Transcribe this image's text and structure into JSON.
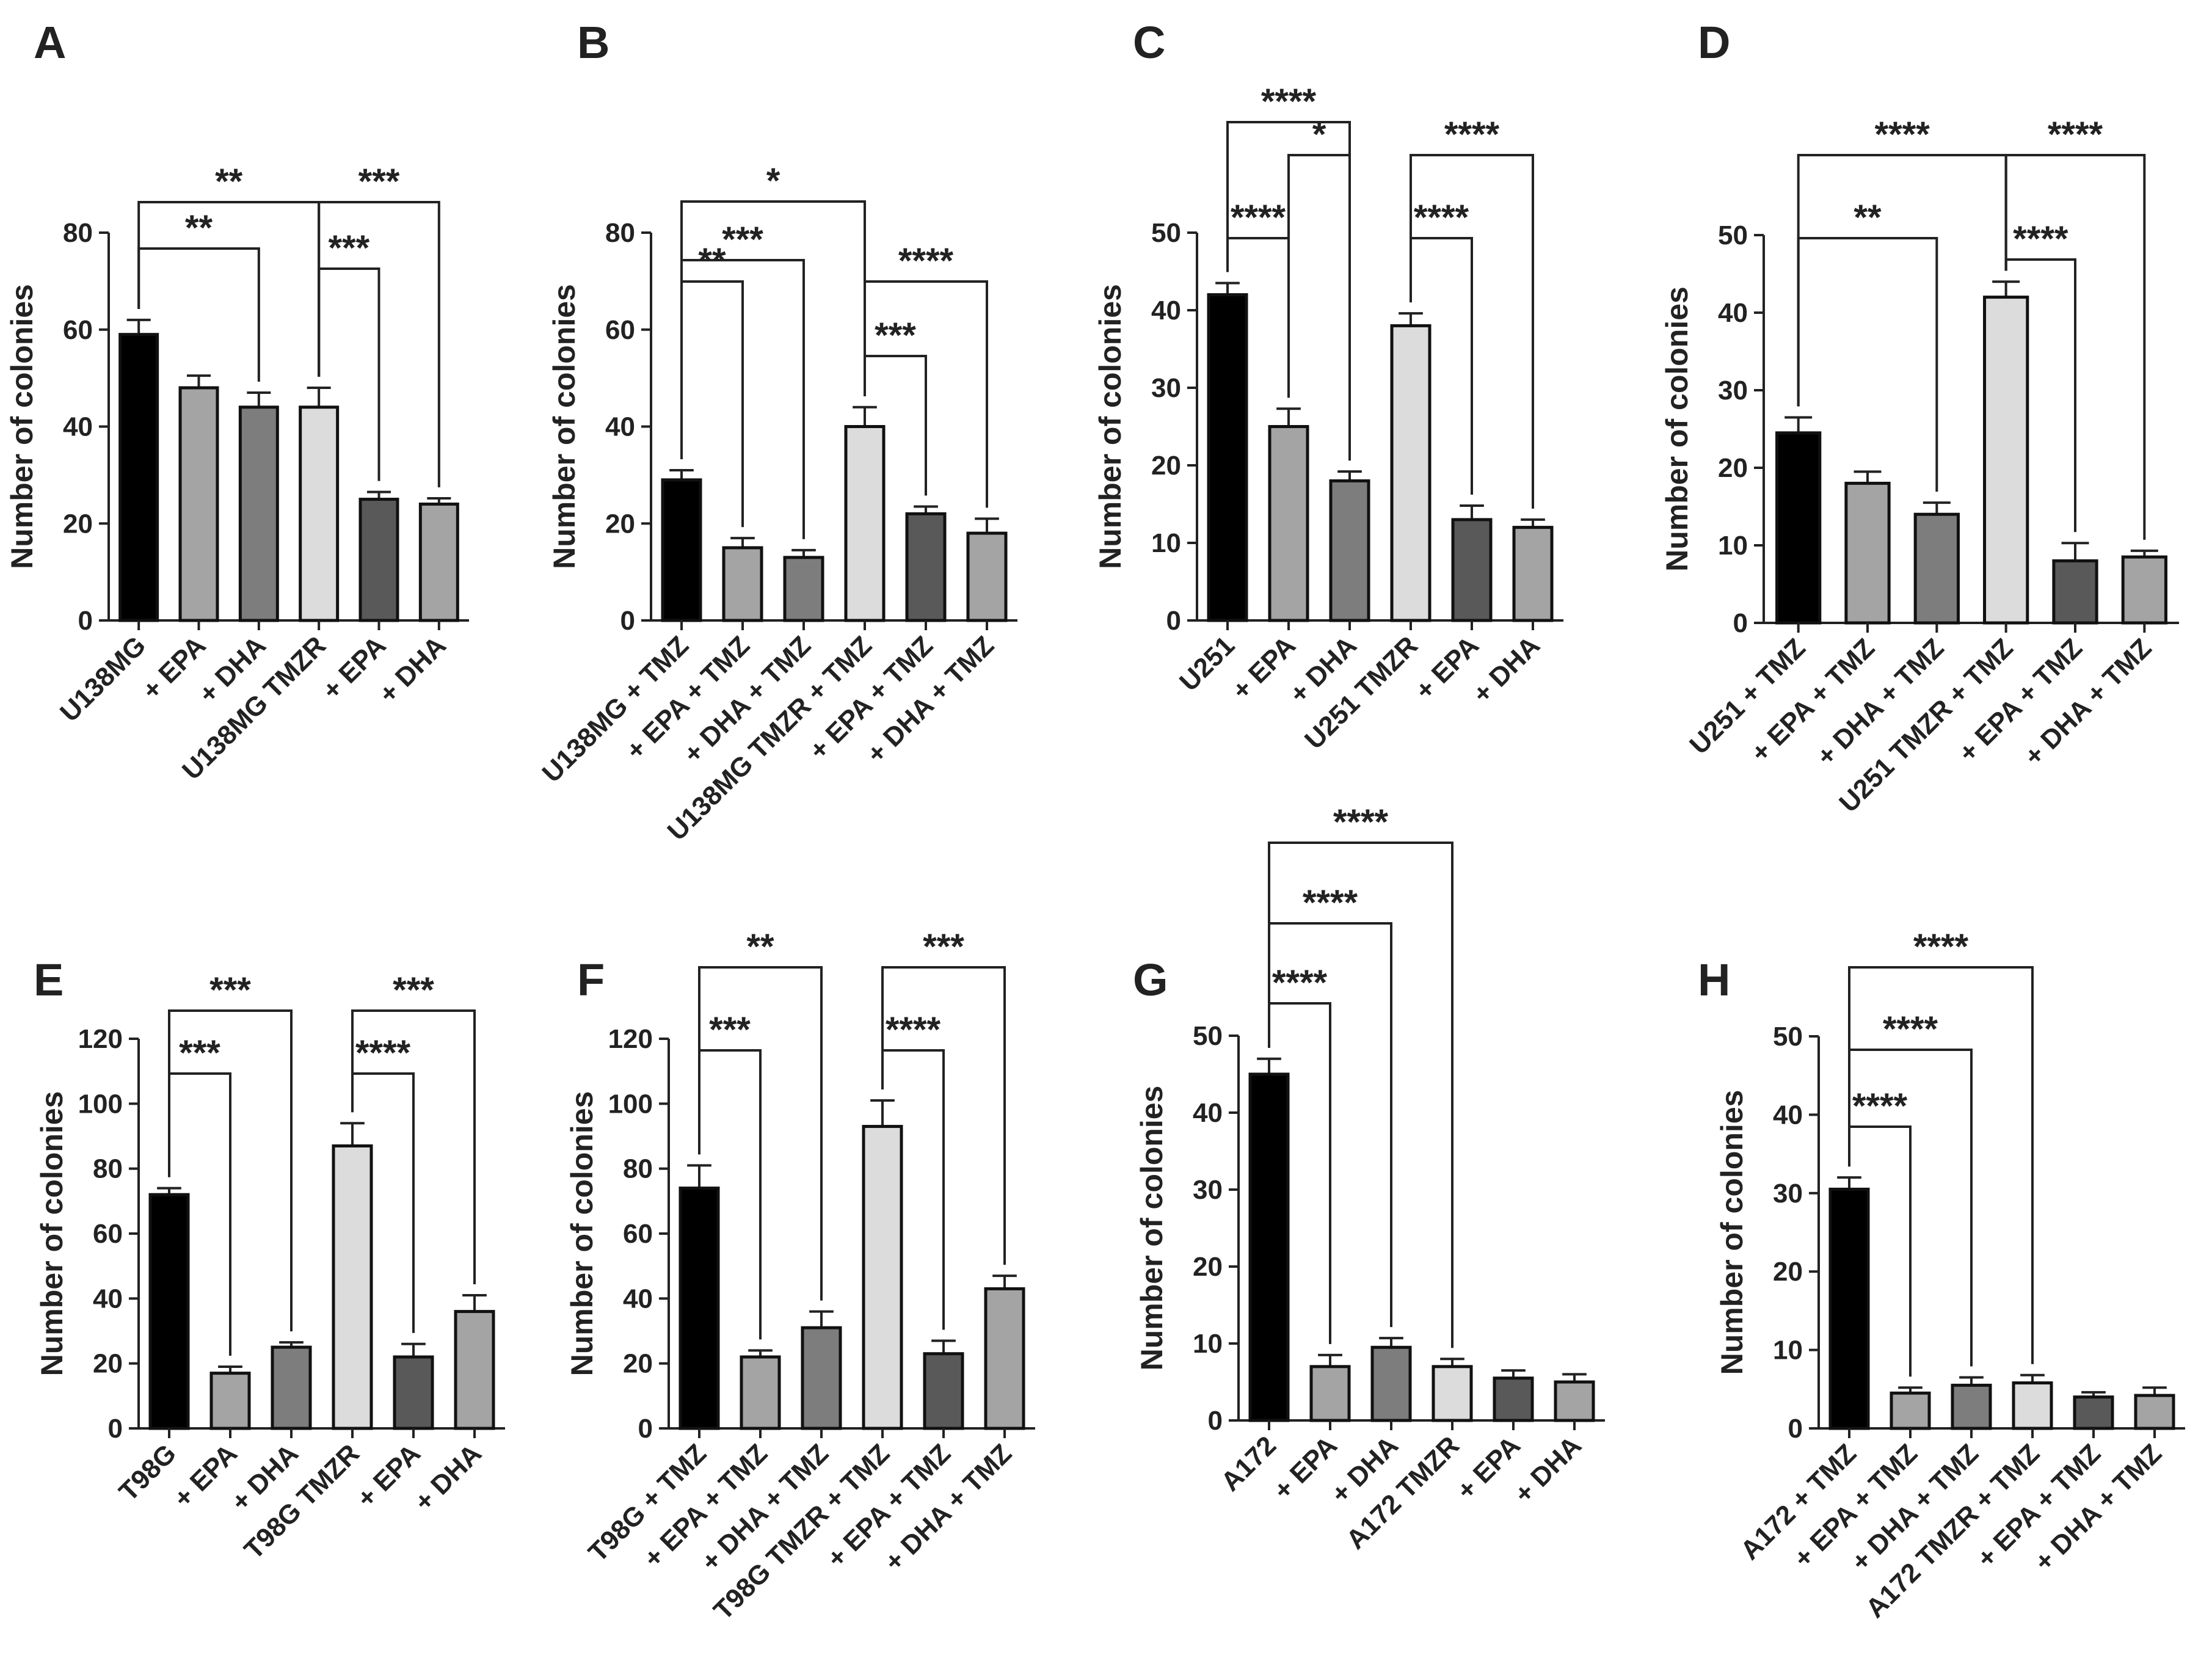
{
  "figure": {
    "background": "#ffffff"
  },
  "palette": [
    "#000000",
    "#a4a4a4",
    "#7d7d7d",
    "#dcdcdc",
    "#595959",
    "#a4a4a4"
  ],
  "chart_data": [
    {
      "panel": "A",
      "type": "bar",
      "ylabel": "Number of colonies",
      "ylim": [
        0,
        80
      ],
      "yticks": [
        0,
        20,
        40,
        60,
        80
      ],
      "categories": [
        "U138MG",
        "+ EPA",
        "+ DHA",
        "U138MG TMZR",
        "+ EPA",
        "+ DHA"
      ],
      "values": [
        59,
        48,
        44,
        44,
        25,
        24
      ],
      "errors": [
        3,
        2.5,
        3,
        4,
        1.5,
        1.2
      ],
      "comparisons": [
        {
          "from": 0,
          "to": 2,
          "label": "**"
        },
        {
          "from": 0,
          "to": 3,
          "label": "**"
        },
        {
          "from": 3,
          "to": 4,
          "label": "***"
        },
        {
          "from": 3,
          "to": 5,
          "label": "***"
        }
      ]
    },
    {
      "panel": "B",
      "type": "bar",
      "ylabel": "Number of colonies",
      "ylim": [
        0,
        80
      ],
      "yticks": [
        0,
        20,
        40,
        60,
        80
      ],
      "categories": [
        "U138MG + TMZ",
        "+ EPA + TMZ",
        "+ DHA + TMZ",
        "U138MG TMZR + TMZ",
        "+ EPA + TMZ",
        "+ DHA + TMZ"
      ],
      "values": [
        29,
        15,
        13,
        40,
        22,
        18
      ],
      "errors": [
        2,
        2,
        1.5,
        4,
        1.5,
        3
      ],
      "comparisons": [
        {
          "from": 0,
          "to": 1,
          "label": "**"
        },
        {
          "from": 0,
          "to": 2,
          "label": "***"
        },
        {
          "from": 0,
          "to": 3,
          "label": "*"
        },
        {
          "from": 3,
          "to": 4,
          "label": "***"
        },
        {
          "from": 3,
          "to": 5,
          "label": "****"
        }
      ]
    },
    {
      "panel": "C",
      "type": "bar",
      "ylabel": "Number of colonies",
      "ylim": [
        0,
        50
      ],
      "yticks": [
        0,
        10,
        20,
        30,
        40,
        50
      ],
      "categories": [
        "U251",
        "+ EPA",
        "+ DHA",
        "U251 TMZR",
        "+ EPA",
        "+ DHA"
      ],
      "values": [
        42,
        25,
        18,
        38,
        13,
        12
      ],
      "errors": [
        1.5,
        2.3,
        1.2,
        1.6,
        1.8,
        1
      ],
      "comparisons": [
        {
          "from": 0,
          "to": 1,
          "label": "****"
        },
        {
          "from": 1,
          "to": 2,
          "label": "*"
        },
        {
          "from": 0,
          "to": 2,
          "label": "****"
        },
        {
          "from": 3,
          "to": 4,
          "label": "****"
        },
        {
          "from": 3,
          "to": 5,
          "label": "****"
        }
      ]
    },
    {
      "panel": "D",
      "type": "bar",
      "ylabel": "Number of colonies",
      "ylim": [
        0,
        50
      ],
      "yticks": [
        0,
        10,
        20,
        30,
        40,
        50
      ],
      "categories": [
        "U251 + TMZ",
        "+ EPA + TMZ",
        "+ DHA + TMZ",
        "U251 TMZR + TMZ",
        "+ EPA + TMZ",
        "+ DHA + TMZ"
      ],
      "values": [
        24.5,
        18,
        14,
        42,
        8,
        8.5
      ],
      "errors": [
        2,
        1.5,
        1.5,
        2,
        2.3,
        0.8
      ],
      "comparisons": [
        {
          "from": 0,
          "to": 2,
          "label": "**"
        },
        {
          "from": 0,
          "to": 3,
          "label": "****"
        },
        {
          "from": 3,
          "to": 4,
          "label": "****"
        },
        {
          "from": 3,
          "to": 5,
          "label": "****"
        }
      ]
    },
    {
      "panel": "E",
      "type": "bar",
      "ylabel": "Number of colonies",
      "ylim": [
        0,
        120
      ],
      "yticks": [
        0,
        20,
        40,
        60,
        80,
        100,
        120
      ],
      "categories": [
        "T98G",
        "+ EPA",
        "+ DHA",
        "T98G TMZR",
        "+ EPA",
        "+ DHA"
      ],
      "values": [
        72,
        17,
        25,
        87,
        22,
        36
      ],
      "errors": [
        2,
        2,
        1.5,
        7,
        4,
        5
      ],
      "comparisons": [
        {
          "from": 0,
          "to": 1,
          "label": "***"
        },
        {
          "from": 0,
          "to": 2,
          "label": "***"
        },
        {
          "from": 3,
          "to": 4,
          "label": "****"
        },
        {
          "from": 3,
          "to": 5,
          "label": "***"
        }
      ]
    },
    {
      "panel": "F",
      "type": "bar",
      "ylabel": "Number of colonies",
      "ylim": [
        0,
        120
      ],
      "yticks": [
        0,
        20,
        40,
        60,
        80,
        100,
        120
      ],
      "categories": [
        "T98G + TMZ",
        "+ EPA + TMZ",
        "+ DHA + TMZ",
        "T98G TMZR + TMZ",
        "+ EPA + TMZ",
        "+ DHA + TMZ"
      ],
      "values": [
        74,
        22,
        31,
        93,
        23,
        43
      ],
      "errors": [
        7,
        2,
        5,
        8,
        4,
        4
      ],
      "comparisons": [
        {
          "from": 0,
          "to": 1,
          "label": "***"
        },
        {
          "from": 0,
          "to": 2,
          "label": "**"
        },
        {
          "from": 3,
          "to": 4,
          "label": "****"
        },
        {
          "from": 3,
          "to": 5,
          "label": "***"
        }
      ]
    },
    {
      "panel": "G",
      "type": "bar",
      "ylabel": "Number of colonies",
      "ylim": [
        0,
        50
      ],
      "yticks": [
        0,
        10,
        20,
        30,
        40,
        50
      ],
      "categories": [
        "A172",
        "+ EPA",
        "+ DHA",
        "A172 TMZR",
        "+ EPA",
        "+ DHA"
      ],
      "values": [
        45,
        7,
        9.5,
        7,
        5.5,
        5
      ],
      "errors": [
        2,
        1.5,
        1.2,
        1,
        1,
        1
      ],
      "comparisons": [
        {
          "from": 0,
          "to": 1,
          "label": "****"
        },
        {
          "from": 0,
          "to": 2,
          "label": "****"
        },
        {
          "from": 0,
          "to": 3,
          "label": "****"
        }
      ]
    },
    {
      "panel": "H",
      "type": "bar",
      "ylabel": "Number of colonies",
      "ylim": [
        0,
        50
      ],
      "yticks": [
        0,
        10,
        20,
        30,
        40,
        50
      ],
      "categories": [
        "A172 + TMZ",
        "+ EPA + TMZ",
        "+ DHA + TMZ",
        "A172 TMZR + TMZ",
        "+ EPA + TMZ",
        "+ DHA + TMZ"
      ],
      "values": [
        30.5,
        4.5,
        5.5,
        5.8,
        4,
        4.2
      ],
      "errors": [
        1.5,
        0.7,
        1,
        1,
        0.6,
        1
      ],
      "comparisons": [
        {
          "from": 0,
          "to": 1,
          "label": "****"
        },
        {
          "from": 0,
          "to": 2,
          "label": "****"
        },
        {
          "from": 0,
          "to": 3,
          "label": "****"
        }
      ]
    }
  ]
}
